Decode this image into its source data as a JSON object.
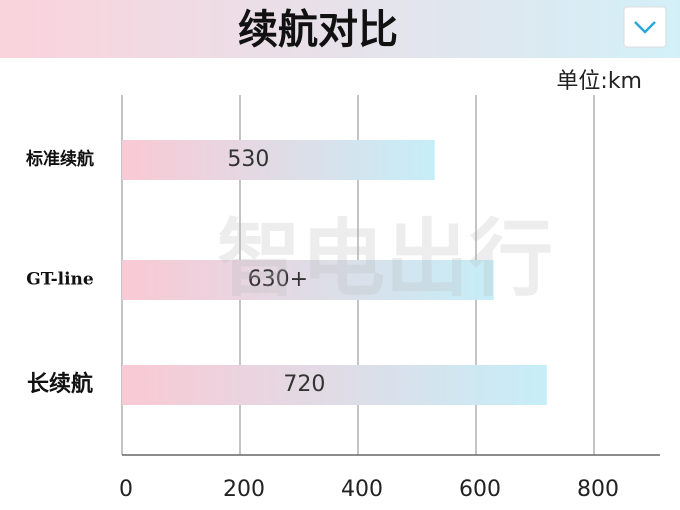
{
  "chart_data": {
    "type": "hbar",
    "title": "续航对比",
    "unit_label": "单位:km",
    "watermark": "智电出行",
    "categories": [
      "标准续航",
      "GT-line",
      "长续航"
    ],
    "values": [
      530,
      630,
      720
    ],
    "value_labels": [
      "530",
      "630+",
      "720"
    ],
    "xlim": [
      0,
      900
    ],
    "xticks": [
      0,
      200,
      400,
      600,
      800
    ],
    "grid": true,
    "bar_color_start": "#f9c9d4",
    "bar_color_end": "#c6eef8"
  }
}
